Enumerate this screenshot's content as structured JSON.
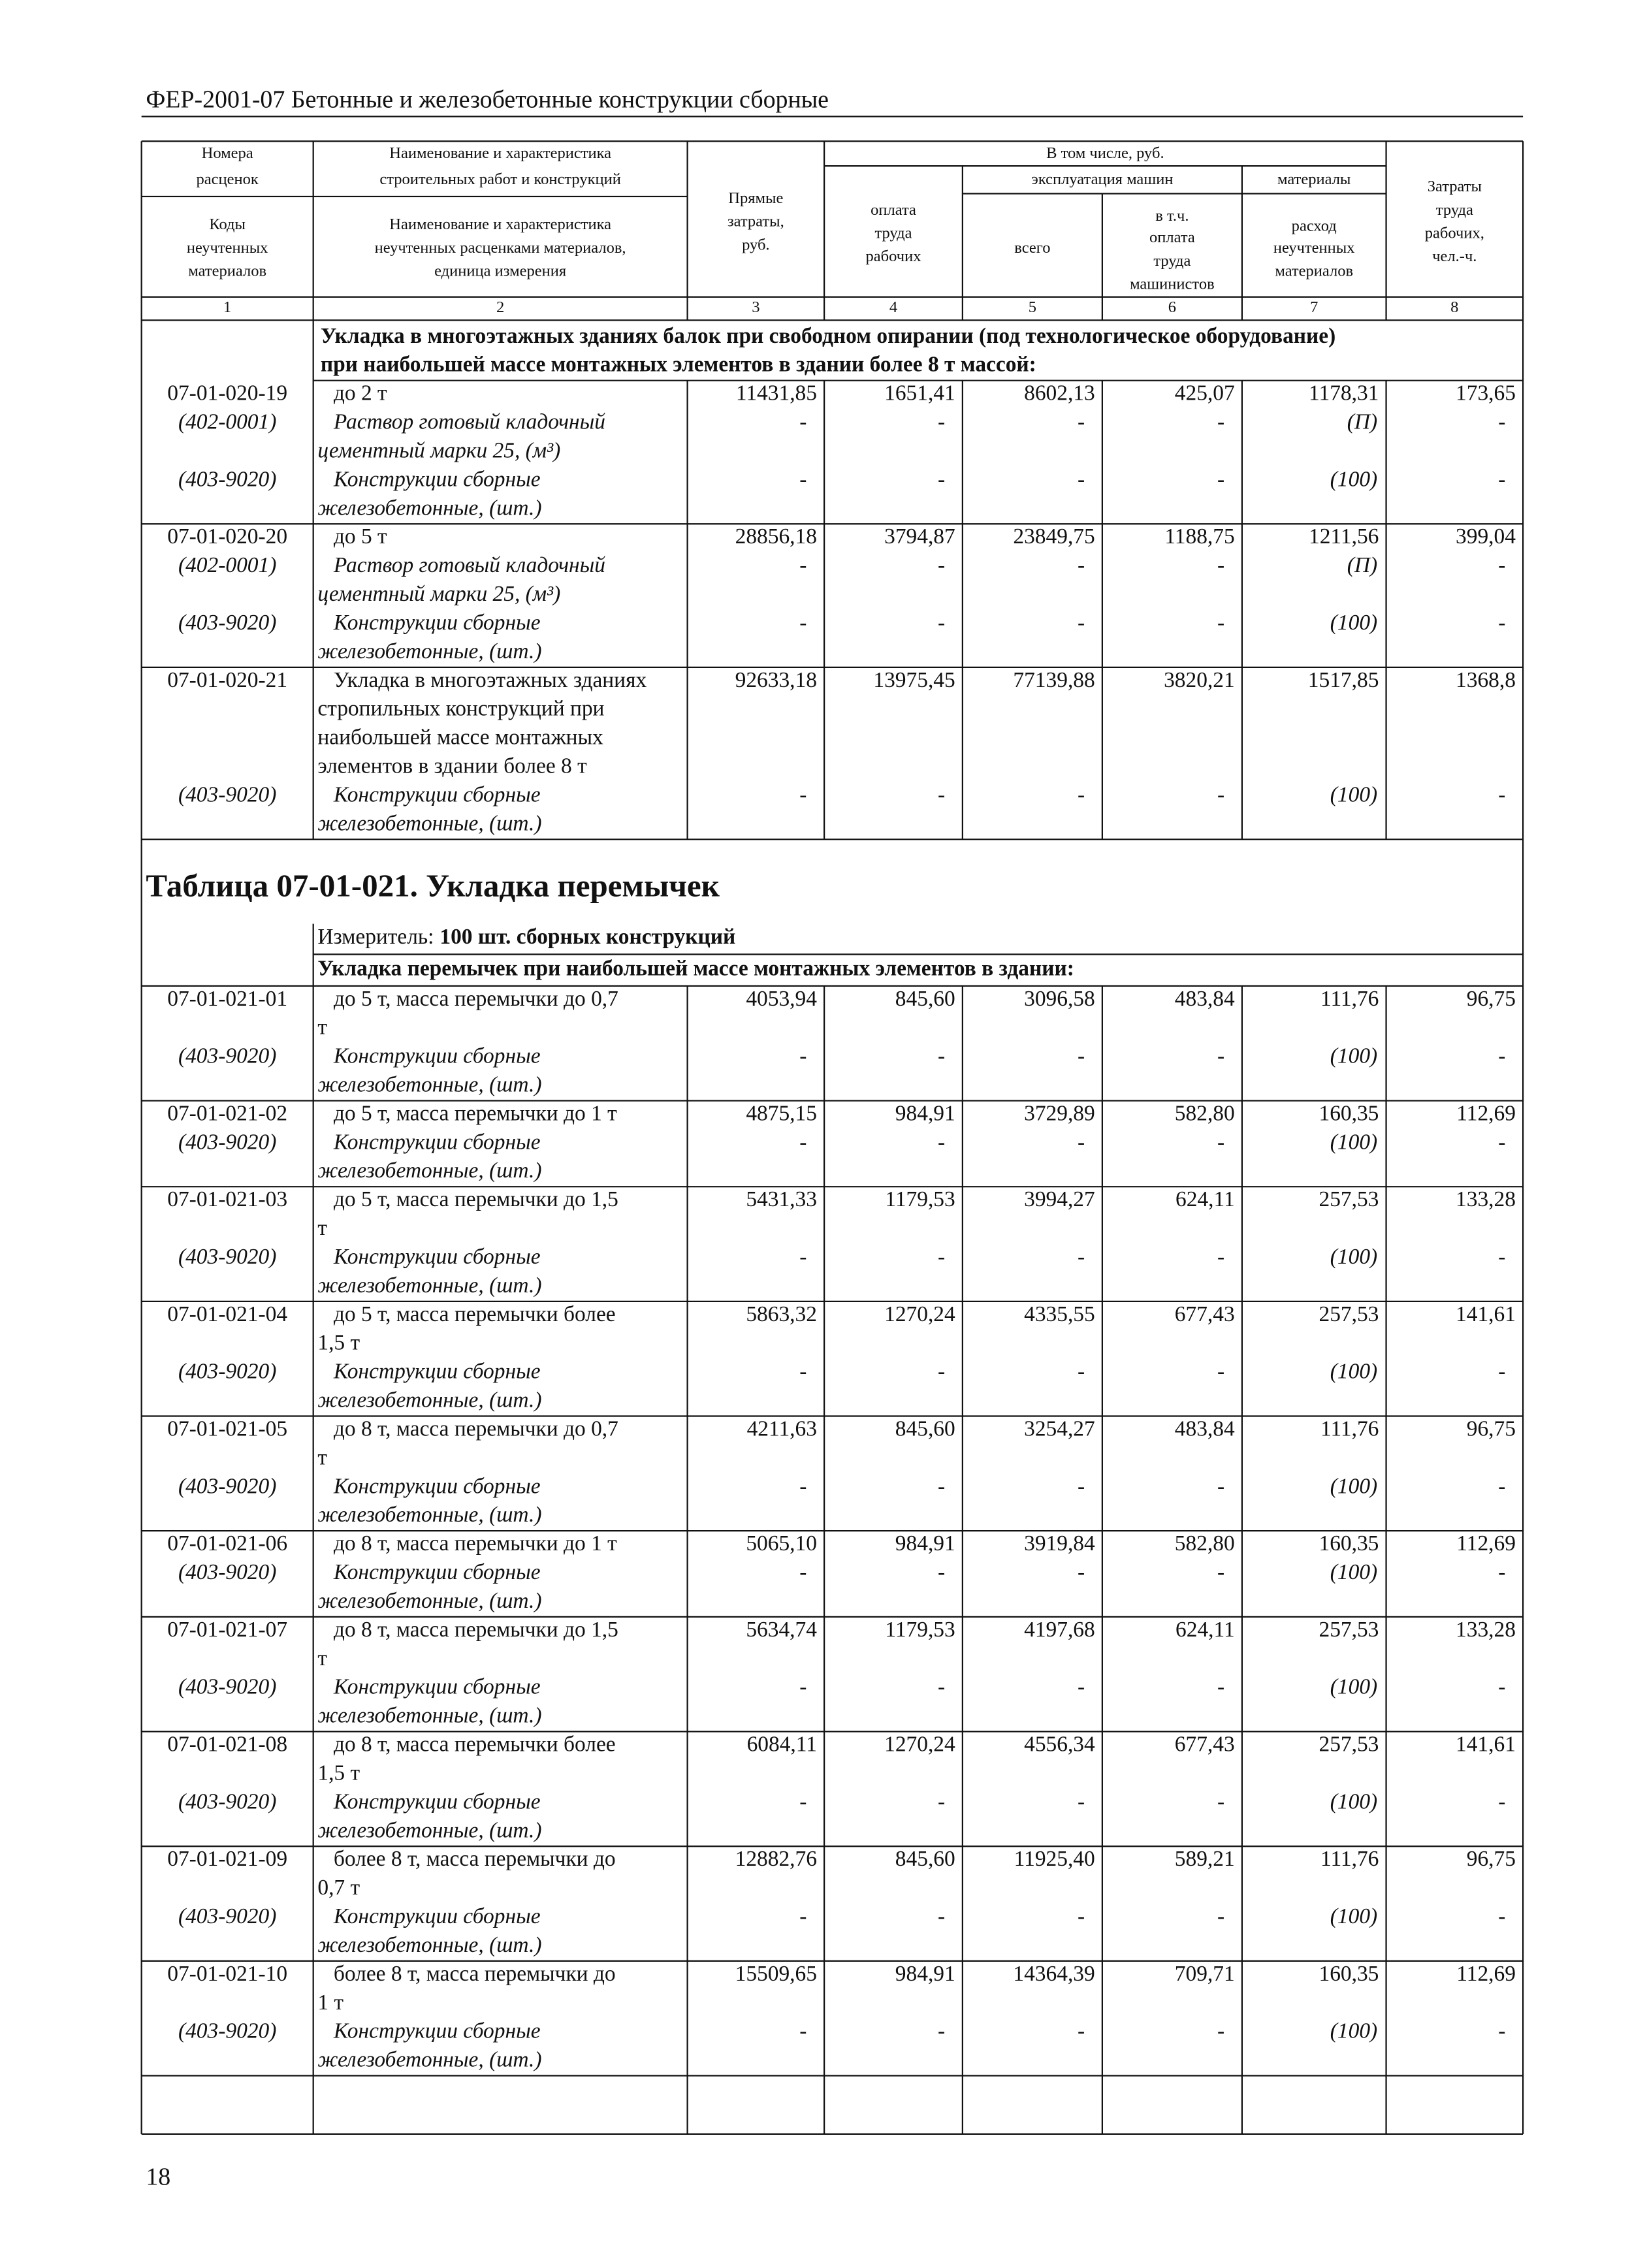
{
  "header": {
    "title": "ФЕР-2001-07 Бетонные и железобетонные конструкции сборные"
  },
  "table_head": {
    "cells": [
      [
        "Номера",
        "расценок"
      ],
      [
        "Коды",
        "неучтенных",
        "материалов"
      ],
      [
        "Наименование и характеристика",
        "строительных работ и конструкций"
      ],
      [
        "Наименование и характеристика",
        "неучтенных расценками материалов,",
        "единица измерения"
      ],
      [
        "Прямые",
        "затраты,",
        "руб."
      ],
      [
        "В том числе, руб."
      ],
      [
        "оплата",
        "труда",
        "рабочих"
      ],
      [
        "эксплуатация машин"
      ],
      [
        "всего"
      ],
      [
        "в т.ч.",
        "оплата",
        "труда",
        "машинистов"
      ],
      [
        "материалы"
      ],
      [
        "расход",
        "неучтенных",
        "материалов"
      ],
      [
        "Затраты",
        "труда",
        "рабочих,",
        "чел.-ч."
      ]
    ],
    "column_numbers": [
      "1",
      "2",
      "3",
      "4",
      "5",
      "6",
      "7",
      "8"
    ]
  },
  "table1": {
    "section": [
      "Укладка в многоэтажных зданиях балок при свободном опирании (под технологическое оборудование)",
      "при наибольшей массе монтажных элементов в здании более 8 т массой:"
    ],
    "rows": [
      {
        "code": "07-01-020-19",
        "name": [
          "до 2 т"
        ],
        "values": [
          "11431,85",
          "1651,41",
          "8602,13",
          "425,07",
          "1178,31",
          "173,65"
        ],
        "materials": [
          {
            "code": "(402-0001)",
            "name": [
              "Раствор готовый кладочный",
              "цементный марки 25, (м³)"
            ],
            "values": [
              "-",
              "-",
              "-",
              "-",
              "(П)",
              "-"
            ]
          },
          {
            "code": "(403-9020)",
            "name": [
              "Конструкции сборные",
              "железобетонные, (шт.)"
            ],
            "values": [
              "-",
              "-",
              "-",
              "-",
              "(100)",
              "-"
            ]
          }
        ]
      },
      {
        "code": "07-01-020-20",
        "name": [
          "до 5 т"
        ],
        "values": [
          "28856,18",
          "3794,87",
          "23849,75",
          "1188,75",
          "1211,56",
          "399,04"
        ],
        "materials": [
          {
            "code": "(402-0001)",
            "name": [
              "Раствор готовый кладочный",
              "цементный марки 25, (м³)"
            ],
            "values": [
              "-",
              "-",
              "-",
              "-",
              "(П)",
              "-"
            ]
          },
          {
            "code": "(403-9020)",
            "name": [
              "Конструкции сборные",
              "железобетонные, (шт.)"
            ],
            "values": [
              "-",
              "-",
              "-",
              "-",
              "(100)",
              "-"
            ]
          }
        ]
      },
      {
        "code": "07-01-020-21",
        "name": [
          "Укладка в многоэтажных зданиях",
          "стропильных конструкций при",
          "наибольшей массе монтажных",
          "элементов в здании более 8 т"
        ],
        "values": [
          "92633,18",
          "13975,45",
          "77139,88",
          "3820,21",
          "1517,85",
          "1368,8"
        ],
        "materials": [
          {
            "code": "(403-9020)",
            "name": [
              "Конструкции сборные",
              "железобетонные, (шт.)"
            ],
            "values": [
              "-",
              "-",
              "-",
              "-",
              "(100)",
              "-"
            ]
          }
        ]
      }
    ]
  },
  "table2": {
    "title": "Таблица 07-01-021. Укладка перемычек",
    "measure_label": "Измеритель:",
    "measure_value": "100 шт. сборных конструкций",
    "section": [
      "Укладка перемычек при наибольшей массе монтажных элементов в здании:"
    ],
    "rows": [
      {
        "code": "07-01-021-01",
        "name": [
          "до 5 т, масса перемычки до 0,7",
          "т"
        ],
        "values": [
          "4053,94",
          "845,60",
          "3096,58",
          "483,84",
          "111,76",
          "96,75"
        ],
        "materials": [
          {
            "code": "(403-9020)",
            "name": [
              "Конструкции сборные",
              "железобетонные, (шт.)"
            ],
            "values": [
              "-",
              "-",
              "-",
              "-",
              "(100)",
              "-"
            ]
          }
        ]
      },
      {
        "code": "07-01-021-02",
        "name": [
          "до 5 т, масса перемычки до 1 т"
        ],
        "values": [
          "4875,15",
          "984,91",
          "3729,89",
          "582,80",
          "160,35",
          "112,69"
        ],
        "materials": [
          {
            "code": "(403-9020)",
            "name": [
              "Конструкции сборные",
              "железобетонные, (шт.)"
            ],
            "values": [
              "-",
              "-",
              "-",
              "-",
              "(100)",
              "-"
            ]
          }
        ]
      },
      {
        "code": "07-01-021-03",
        "name": [
          "до 5 т, масса перемычки до 1,5",
          "т"
        ],
        "values": [
          "5431,33",
          "1179,53",
          "3994,27",
          "624,11",
          "257,53",
          "133,28"
        ],
        "materials": [
          {
            "code": "(403-9020)",
            "name": [
              "Конструкции сборные",
              "железобетонные, (шт.)"
            ],
            "values": [
              "-",
              "-",
              "-",
              "-",
              "(100)",
              "-"
            ]
          }
        ]
      },
      {
        "code": "07-01-021-04",
        "name": [
          "до 5 т, масса перемычки более",
          "1,5 т"
        ],
        "values": [
          "5863,32",
          "1270,24",
          "4335,55",
          "677,43",
          "257,53",
          "141,61"
        ],
        "materials": [
          {
            "code": "(403-9020)",
            "name": [
              "Конструкции сборные",
              "железобетонные, (шт.)"
            ],
            "values": [
              "-",
              "-",
              "-",
              "-",
              "(100)",
              "-"
            ]
          }
        ]
      },
      {
        "code": "07-01-021-05",
        "name": [
          "до 8 т, масса перемычки до 0,7",
          "т"
        ],
        "values": [
          "4211,63",
          "845,60",
          "3254,27",
          "483,84",
          "111,76",
          "96,75"
        ],
        "materials": [
          {
            "code": "(403-9020)",
            "name": [
              "Конструкции сборные",
              "железобетонные, (шт.)"
            ],
            "values": [
              "-",
              "-",
              "-",
              "-",
              "(100)",
              "-"
            ]
          }
        ]
      },
      {
        "code": "07-01-021-06",
        "name": [
          "до 8 т, масса перемычки до 1 т"
        ],
        "values": [
          "5065,10",
          "984,91",
          "3919,84",
          "582,80",
          "160,35",
          "112,69"
        ],
        "materials": [
          {
            "code": "(403-9020)",
            "name": [
              "Конструкции сборные",
              "железобетонные, (шт.)"
            ],
            "values": [
              "-",
              "-",
              "-",
              "-",
              "(100)",
              "-"
            ]
          }
        ]
      },
      {
        "code": "07-01-021-07",
        "name": [
          "до 8 т, масса перемычки до 1,5",
          "т"
        ],
        "values": [
          "5634,74",
          "1179,53",
          "4197,68",
          "624,11",
          "257,53",
          "133,28"
        ],
        "materials": [
          {
            "code": "(403-9020)",
            "name": [
              "Конструкции сборные",
              "железобетонные, (шт.)"
            ],
            "values": [
              "-",
              "-",
              "-",
              "-",
              "(100)",
              "-"
            ]
          }
        ]
      },
      {
        "code": "07-01-021-08",
        "name": [
          "до 8 т, масса перемычки более",
          "1,5 т"
        ],
        "values": [
          "6084,11",
          "1270,24",
          "4556,34",
          "677,43",
          "257,53",
          "141,61"
        ],
        "materials": [
          {
            "code": "(403-9020)",
            "name": [
              "Конструкции сборные",
              "железобетонные, (шт.)"
            ],
            "values": [
              "-",
              "-",
              "-",
              "-",
              "(100)",
              "-"
            ]
          }
        ]
      },
      {
        "code": "07-01-021-09",
        "name": [
          "более 8 т, масса перемычки до",
          "0,7 т"
        ],
        "values": [
          "12882,76",
          "845,60",
          "11925,40",
          "589,21",
          "111,76",
          "96,75"
        ],
        "materials": [
          {
            "code": "(403-9020)",
            "name": [
              "Конструкции сборные",
              "железобетонные, (шт.)"
            ],
            "values": [
              "-",
              "-",
              "-",
              "-",
              "(100)",
              "-"
            ]
          }
        ]
      },
      {
        "code": "07-01-021-10",
        "name": [
          "более 8 т, масса перемычки до",
          "1 т"
        ],
        "values": [
          "15509,65",
          "984,91",
          "14364,39",
          "709,71",
          "160,35",
          "112,69"
        ],
        "materials": [
          {
            "code": "(403-9020)",
            "name": [
              "Конструкции сборные",
              "железобетонные, (шт.)"
            ],
            "values": [
              "-",
              "-",
              "-",
              "-",
              "(100)",
              "-"
            ]
          }
        ]
      }
    ]
  },
  "footer": {
    "page_number": "18"
  }
}
